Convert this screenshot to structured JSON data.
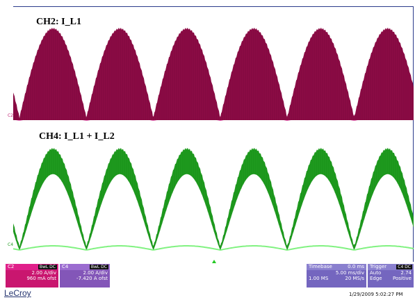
{
  "traces": {
    "ch2": {
      "label": "CH2: I_L1",
      "marker": "C2",
      "color": "#8c0b45",
      "glow": "#e0279a"
    },
    "ch4": {
      "label": "CH4: I_L1 + I_L2",
      "marker": "C4",
      "color": "#1f9b1f",
      "glow": "#62ef62"
    }
  },
  "panels": {
    "c2": {
      "name": "C2",
      "tag": "BwL DC",
      "scale": "2.00 A/div",
      "offset": "960 mA ofst",
      "color": "#d01575"
    },
    "c4": {
      "name": "C4",
      "tag": "BwL DC",
      "scale": "2.00 A/div",
      "offset": "-7.420 A ofst",
      "color": "#8e5fc1"
    },
    "timebase": {
      "title": "Timebase",
      "delay": "0.0 ms",
      "per_div": "5.00 ms/div",
      "samples": "1.00 MS",
      "rate": "20 MS/s",
      "color": "#7b6dc4"
    },
    "trigger": {
      "title": "Trigger",
      "tag": "C4 DC",
      "mode": "Auto",
      "level": "2.74",
      "type": "Edge",
      "slope": "Positive",
      "color": "#7b6dc4"
    }
  },
  "brand": "LeCroy",
  "datetime": "1/29/2009 5:02:27 PM"
}
